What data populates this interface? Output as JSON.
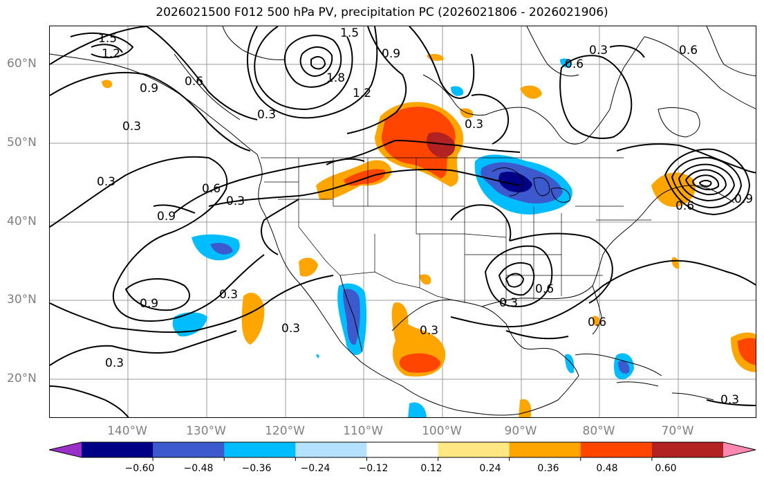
{
  "title": "2026021500 F012 500 hPa PV, precipitation PC (2026021806 - 2026021906)",
  "lat_labels": [
    "60°N",
    "50°N",
    "40°N",
    "30°N",
    "20°N"
  ],
  "lon_labels": [
    "140°W",
    "130°W",
    "120°W",
    "110°W",
    "100°W",
    "90°W",
    "80°W",
    "70°W"
  ],
  "colorbar": {
    "colors": [
      "#9b30c8",
      "#000087",
      "#3c5acd",
      "#00bdff",
      "#b4e1ff",
      "#ffffff",
      "#ffe884",
      "#ffa500",
      "#ff4500",
      "#b22222",
      "#ff88b0"
    ],
    "tick_labels": [
      "−0.60",
      "−0.48",
      "−0.36",
      "−0.24",
      "−0.12",
      "0.12",
      "0.24",
      "0.36",
      "0.48",
      "0.60"
    ]
  },
  "contour_labels": [
    "1.5",
    "1.2",
    "0.6",
    "0.9",
    "0.3",
    "0.3",
    "1.5",
    "1.2",
    "0.9",
    "1.8",
    "0.3",
    "0.3",
    "0.6",
    "0.9",
    "0.3",
    "0.9",
    "0.3",
    "0.3",
    "0.3",
    "0.3",
    "0.6",
    "0.6",
    "0.3",
    "0.9",
    "0.6",
    "0.6",
    "0.6",
    "0.3",
    "0.3"
  ]
}
